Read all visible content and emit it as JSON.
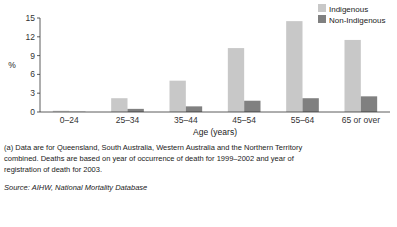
{
  "chart_data": {
    "type": "bar",
    "categories": [
      "0–24",
      "25–34",
      "35–44",
      "45–54",
      "55–64",
      "65 or over"
    ],
    "series": [
      {
        "name": "Indigenous",
        "color": "#c8c8c8",
        "values": [
          0.2,
          2.2,
          5.0,
          10.2,
          14.5,
          11.5
        ]
      },
      {
        "name": "Non-Indigenous",
        "color": "#808080",
        "values": [
          0.05,
          0.5,
          0.9,
          1.8,
          2.2,
          2.5
        ]
      }
    ],
    "x_label": "Age (years)",
    "y_label": "%",
    "ylim": [
      0,
      15
    ],
    "yticks": [
      0,
      3,
      6,
      9,
      12,
      15
    ],
    "grid": false,
    "legend": "upper right",
    "annotations": [
      "(a) Data are for Queensland, South Australia, Western Australia and the Northern Territory",
      "combined. Deaths are based on year of occurrence of death for 1999–2002 and year of",
      "registration of death for 2003.",
      "Source: AIHW, National Mortality Database"
    ]
  }
}
